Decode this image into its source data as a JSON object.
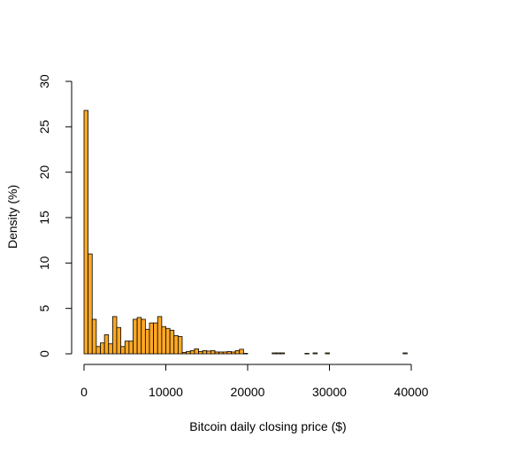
{
  "chart_data": {
    "type": "bar",
    "title": "",
    "xlabel": "Bitcoin daily closing price ($)",
    "ylabel": "Density (%)",
    "xlim": [
      0,
      40000
    ],
    "ylim": [
      0,
      30
    ],
    "x_ticks": [
      0,
      10000,
      20000,
      30000,
      40000
    ],
    "x_tick_labels": [
      "0",
      "10000",
      "20000",
      "30000",
      "40000"
    ],
    "y_ticks": [
      0,
      5,
      10,
      15,
      20,
      25,
      30
    ],
    "y_tick_labels": [
      "0",
      "5",
      "10",
      "15",
      "20",
      "25",
      "30"
    ],
    "bin_width": 500,
    "bin_start": 0,
    "bar_color": "#FFA824",
    "grid": false,
    "legend": "none",
    "values": [
      26.8,
      11.0,
      3.8,
      0.8,
      1.2,
      2.1,
      1.1,
      4.1,
      2.9,
      0.8,
      1.4,
      1.4,
      3.8,
      4.0,
      3.8,
      2.7,
      3.4,
      3.4,
      4.1,
      3.0,
      2.8,
      2.6,
      2.0,
      1.9,
      0.15,
      0.25,
      0.35,
      0.55,
      0.25,
      0.35,
      0.3,
      0.35,
      0.2,
      0.2,
      0.2,
      0.25,
      0.2,
      0.35,
      0.5,
      0.05,
      0.0,
      0.0,
      0.0,
      0.0,
      0.0,
      0.0,
      0.1,
      0.1,
      0.1,
      0.0,
      0.0,
      0.0,
      0.0,
      0.0,
      0.05,
      0.0,
      0.1,
      0.0,
      0.0,
      0.1,
      0.0,
      0.0,
      0.0,
      0.0,
      0.0,
      0.0,
      0.0,
      0.0,
      0.0,
      0.0,
      0.0,
      0.0,
      0.0,
      0.0,
      0.0,
      0.0,
      0.0,
      0.0,
      0.1,
      0.0
    ]
  }
}
